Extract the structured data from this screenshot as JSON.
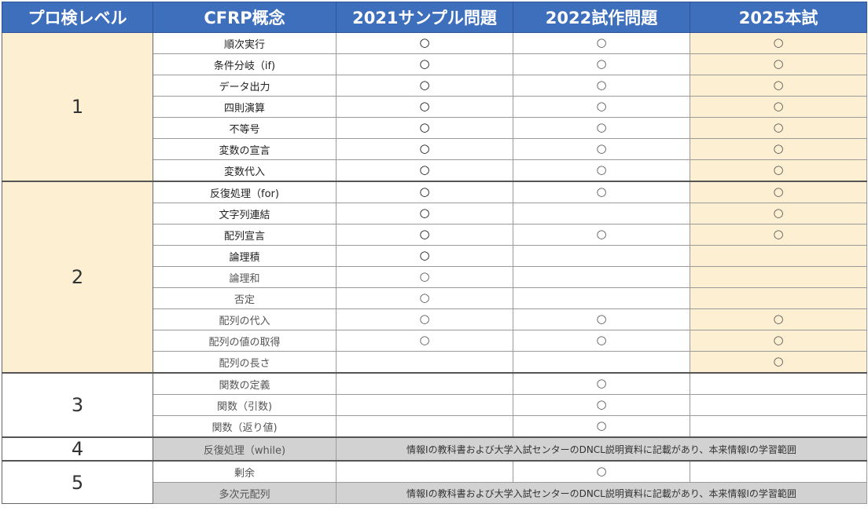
{
  "headers": [
    "プロ検レベル",
    "CFRP概念",
    "2021サンプル問題",
    "2022試作問題",
    "2025本試"
  ],
  "mark": "○",
  "note": "情報Ⅰの教科書および大学入試センターのDNCL説明資料に記載があり、本来情報Ⅰの学習範囲",
  "levels": [
    {
      "level": "1",
      "rows": [
        {
          "concept": "順次実行",
          "y2021": "○",
          "y2022": "○",
          "y2025": "○"
        },
        {
          "concept": "条件分岐（if)",
          "y2021": "○",
          "y2022": "○",
          "y2025": "○"
        },
        {
          "concept": "データ出力",
          "y2021": "○",
          "y2022": "○",
          "y2025": "○"
        },
        {
          "concept": "四則演算",
          "y2021": "○",
          "y2022": "○",
          "y2025": "○"
        },
        {
          "concept": "不等号",
          "y2021": "○",
          "y2022": "○",
          "y2025": "○"
        },
        {
          "concept": "変数の宣言",
          "y2021": "○",
          "y2022": "○",
          "y2025": "○"
        },
        {
          "concept": "変数代入",
          "y2021": "○",
          "y2022": "○",
          "y2025": "○"
        }
      ]
    },
    {
      "level": "2",
      "rows": [
        {
          "concept": "反復処理（for)",
          "y2021": "○",
          "y2022": "○",
          "y2025": "○"
        },
        {
          "concept": "文字列連結",
          "y2021": "○",
          "y2022": "",
          "y2025": "○"
        },
        {
          "concept": "配列宣言",
          "y2021": "○",
          "y2022": "○",
          "y2025": "○"
        },
        {
          "concept": "論理積",
          "y2021": "○",
          "y2022": "",
          "y2025": ""
        },
        {
          "concept": "論理和",
          "y2021": "○",
          "y2022": "",
          "y2025": ""
        },
        {
          "concept": "否定",
          "y2021": "○",
          "y2022": "",
          "y2025": ""
        },
        {
          "concept": "配列の代入",
          "y2021": "○",
          "y2022": "○",
          "y2025": "○"
        },
        {
          "concept": "配列の値の取得",
          "y2021": "○",
          "y2022": "○",
          "y2025": "○"
        },
        {
          "concept": "配列の長さ",
          "y2021": "",
          "y2022": "",
          "y2025": "○"
        }
      ]
    },
    {
      "level": "3",
      "rows": [
        {
          "concept": "関数の定義",
          "y2021": "",
          "y2022": "○",
          "y2025": ""
        },
        {
          "concept": "関数（引数)",
          "y2021": "",
          "y2022": "○",
          "y2025": ""
        },
        {
          "concept": "関数（返り値)",
          "y2021": "",
          "y2022": "○",
          "y2025": ""
        }
      ]
    },
    {
      "level": "4",
      "rows": [
        {
          "concept": "反復処理（while)"
        }
      ]
    },
    {
      "level": "5",
      "rows": [
        {
          "concept": "剰余",
          "y2021": "",
          "y2022": "○",
          "y2025": ""
        },
        {
          "concept": "多次元配列"
        }
      ]
    }
  ]
}
